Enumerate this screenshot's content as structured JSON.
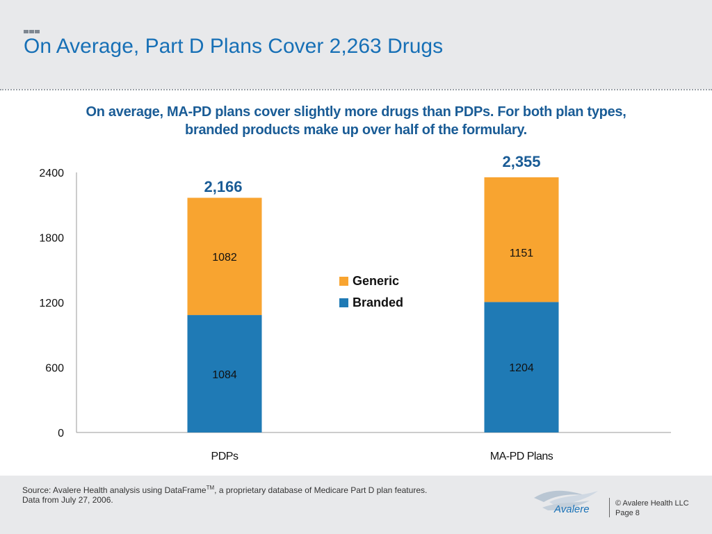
{
  "title": "On Average, Part D Plans Cover 2,263 Drugs",
  "subtitle_line1": "On average, MA-PD plans cover slightly more drugs than PDPs.  For both plan types,",
  "subtitle_line2": "branded products make up over half of the formulary.",
  "chart_data": {
    "type": "bar",
    "stacked": true,
    "categories": [
      "PDPs",
      "MA-PD Plans"
    ],
    "series": [
      {
        "name": "Branded",
        "values": [
          1084,
          1204
        ],
        "color": "#1f7ab5"
      },
      {
        "name": "Generic",
        "values": [
          1082,
          1151
        ],
        "color": "#f8a430"
      }
    ],
    "totals": [
      "2,166",
      "2,355"
    ],
    "yticks": [
      0,
      600,
      1200,
      1800,
      2400
    ],
    "ylim": [
      0,
      2400
    ],
    "legend_position": "center",
    "grid": false
  },
  "footer": {
    "source_prefix": "Source:  Avalere Health analysis using DataFrame",
    "source_sup": "TM",
    "source_suffix": ", a proprietary database of Medicare Part D plan features.",
    "source_line2": "Data from July 27, 2006.",
    "logo_text": "Avalere",
    "copyright": "© Avalere Health LLC",
    "page": "Page 8"
  },
  "colors": {
    "title": "#1770b6",
    "subtitle": "#1a5c96",
    "total_label": "#1a5c96",
    "header_bg": "#e8e9eb"
  }
}
